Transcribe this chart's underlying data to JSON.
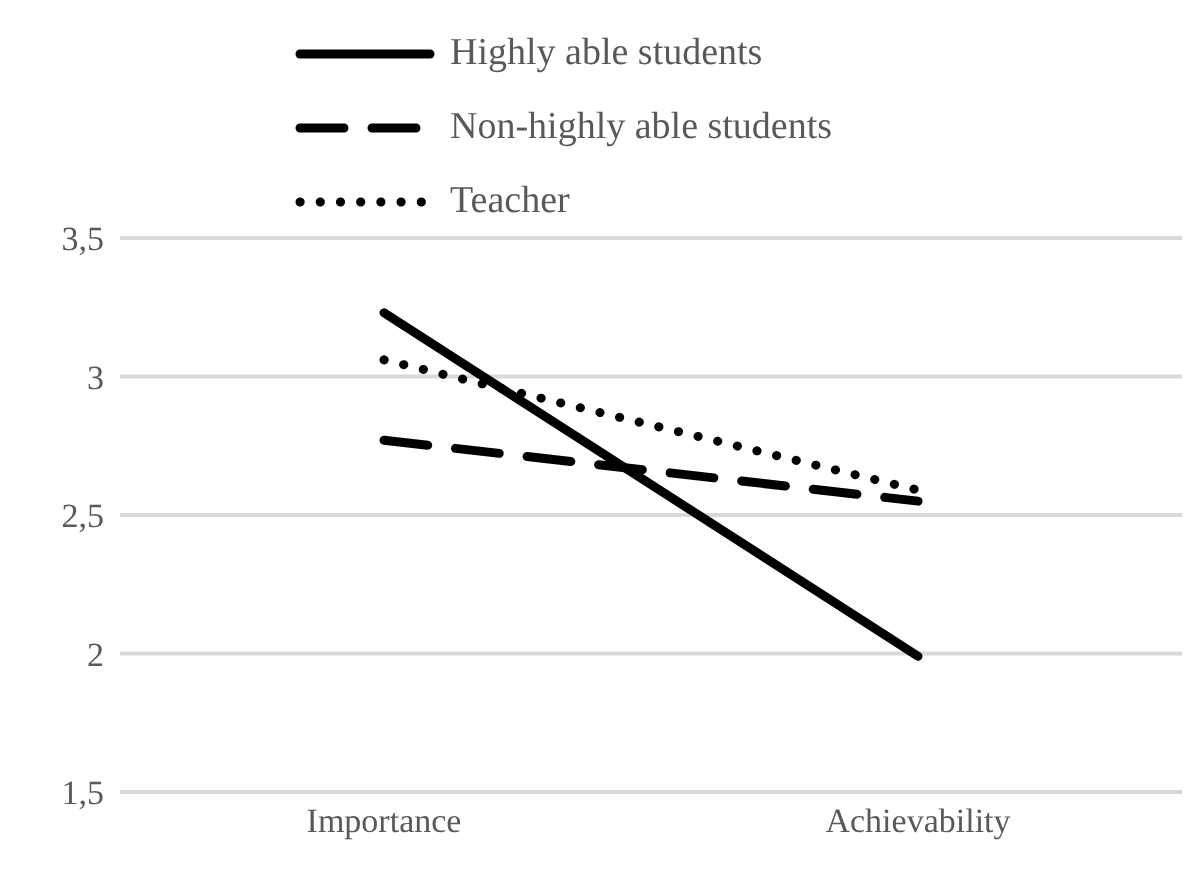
{
  "chart_data": {
    "type": "line",
    "categories": [
      "Importance",
      "Achievability"
    ],
    "series": [
      {
        "name": "Highly able students",
        "color": "#000000",
        "line_style": "solid",
        "values": [
          3.23,
          1.99
        ]
      },
      {
        "name": "Non-highly able students",
        "color": "#000000",
        "line_style": "dashed",
        "values": [
          2.77,
          2.55
        ]
      },
      {
        "name": "Teacher",
        "color": "#000000",
        "line_style": "dotted",
        "values": [
          3.06,
          2.59
        ]
      }
    ],
    "ylim": [
      1.5,
      3.5
    ],
    "yticks": [
      {
        "value": 1.5,
        "label": "1,5"
      },
      2,
      {
        "value": 2.5,
        "label": "2,5"
      },
      3,
      {
        "value": 3.5,
        "label": "3,5"
      }
    ],
    "grid": "y",
    "legend": "top",
    "marker": "none"
  }
}
